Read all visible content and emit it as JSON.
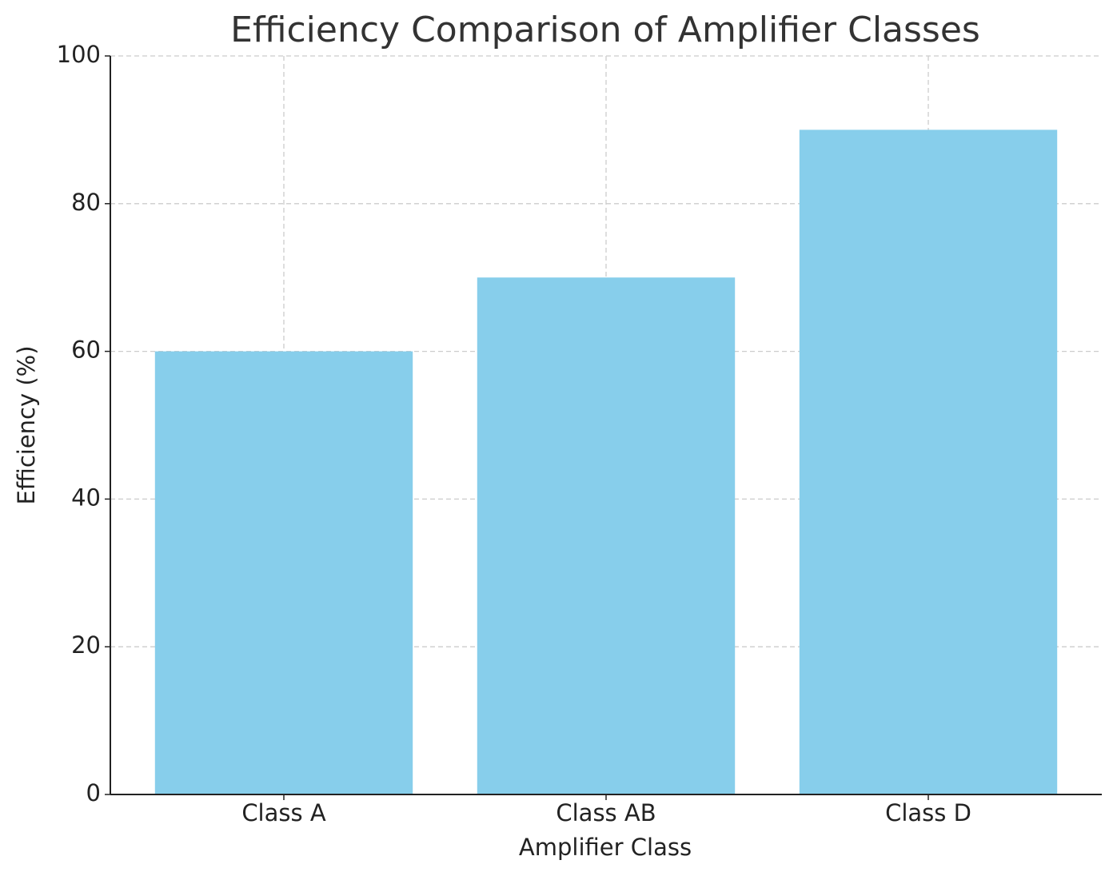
{
  "chart_data": {
    "type": "bar",
    "title": "Efficiency Comparison of Amplifier Classes",
    "x_label": "Amplifier Class",
    "y_label": "Efficiency (%)",
    "categories": [
      "Class A",
      "Class AB",
      "Class D"
    ],
    "values": [
      60,
      70,
      90
    ],
    "color": "#87ceeb",
    "ylim": [
      0,
      100
    ],
    "yticks": [
      0,
      20,
      40,
      60,
      80,
      100
    ],
    "grid": true
  }
}
